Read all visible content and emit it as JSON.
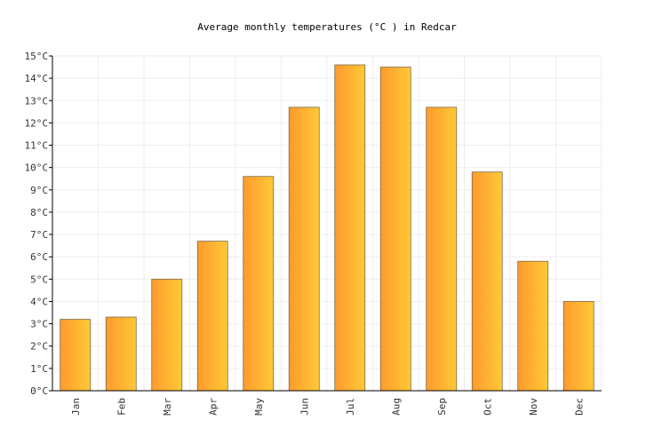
{
  "chart_data": {
    "type": "bar",
    "title": "Average monthly temperatures (°C ) in Redcar",
    "xlabel": "",
    "ylabel": "",
    "categories": [
      "Jan",
      "Feb",
      "Mar",
      "Apr",
      "May",
      "Jun",
      "Jul",
      "Aug",
      "Sep",
      "Oct",
      "Nov",
      "Dec"
    ],
    "values": [
      3.2,
      3.3,
      5.0,
      6.7,
      9.6,
      12.7,
      14.6,
      14.5,
      12.7,
      9.8,
      5.8,
      4.0
    ],
    "ylim": [
      0,
      15
    ],
    "y_ticks": [
      "0°C",
      "1°C",
      "2°C",
      "3°C",
      "4°C",
      "5°C",
      "6°C",
      "7°C",
      "8°C",
      "9°C",
      "10°C",
      "11°C",
      "12°C",
      "13°C",
      "14°C",
      "15°C"
    ],
    "grid": true,
    "legend": "none",
    "colors": {
      "bar_left": "#ff9a2e",
      "bar_right": "#ffc936",
      "bar_stroke": "#7a6a4a",
      "grid": "#eeeeee",
      "axis": "#000000"
    }
  }
}
